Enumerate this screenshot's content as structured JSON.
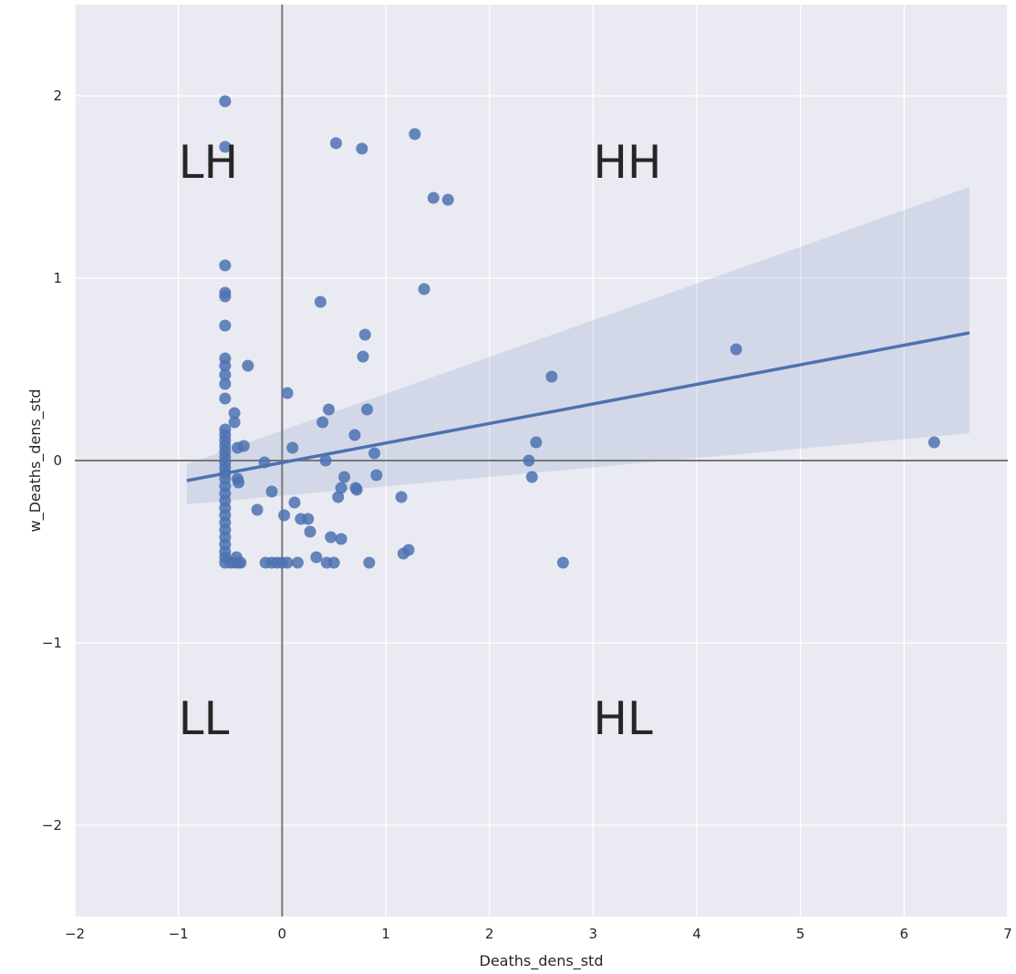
{
  "chart_data": {
    "type": "scatter",
    "title": "",
    "xlabel": "Deaths_dens_std",
    "ylabel": "w_Deaths_dens_std",
    "xlim": [
      -2,
      7
    ],
    "ylim": [
      -2.5,
      2.5
    ],
    "x_ticks": [
      -2,
      -1,
      0,
      1,
      2,
      3,
      4,
      5,
      6,
      7
    ],
    "y_ticks": [
      -2,
      -1,
      0,
      1,
      2
    ],
    "grid": true,
    "background": "#eaeaf2",
    "point_color": "#4c72b0",
    "reference_lines": {
      "x": 0,
      "y": 0,
      "color": "#777777"
    },
    "quadrant_labels": [
      {
        "text": "LH",
        "x": -1,
        "y": 1.55
      },
      {
        "text": "HH",
        "x": 3,
        "y": 1.55
      },
      {
        "text": "LL",
        "x": -1,
        "y": -1.5
      },
      {
        "text": "HL",
        "x": 3,
        "y": -1.5
      }
    ],
    "regression": {
      "x_start": -0.92,
      "y_start": -0.11,
      "x_end": 6.63,
      "y_end": 0.7,
      "ci_upper": [
        [
          -0.92,
          -0.02
        ],
        [
          6.63,
          1.5
        ]
      ],
      "ci_lower": [
        [
          -0.92,
          -0.24
        ],
        [
          6.63,
          0.15
        ]
      ]
    },
    "points": [
      [
        -0.55,
        1.97
      ],
      [
        -0.55,
        1.72
      ],
      [
        -0.55,
        1.07
      ],
      [
        -0.55,
        0.92
      ],
      [
        -0.55,
        0.9
      ],
      [
        -0.55,
        0.74
      ],
      [
        -0.55,
        0.56
      ],
      [
        -0.55,
        0.52
      ],
      [
        -0.55,
        0.47
      ],
      [
        -0.55,
        0.42
      ],
      [
        -0.55,
        0.34
      ],
      [
        -0.55,
        0.17
      ],
      [
        -0.55,
        0.14
      ],
      [
        -0.55,
        0.11
      ],
      [
        -0.55,
        0.08
      ],
      [
        -0.55,
        0.05
      ],
      [
        -0.55,
        0.02
      ],
      [
        -0.55,
        -0.01
      ],
      [
        -0.55,
        -0.04
      ],
      [
        -0.55,
        -0.07
      ],
      [
        -0.55,
        -0.1
      ],
      [
        -0.55,
        -0.14
      ],
      [
        -0.55,
        -0.18
      ],
      [
        -0.55,
        -0.22
      ],
      [
        -0.55,
        -0.26
      ],
      [
        -0.55,
        -0.3
      ],
      [
        -0.55,
        -0.34
      ],
      [
        -0.55,
        -0.38
      ],
      [
        -0.55,
        -0.42
      ],
      [
        -0.55,
        -0.46
      ],
      [
        -0.55,
        -0.5
      ],
      [
        -0.55,
        -0.53
      ],
      [
        -0.55,
        -0.56
      ],
      [
        -0.5,
        -0.56
      ],
      [
        -0.46,
        -0.56
      ],
      [
        -0.44,
        -0.53
      ],
      [
        -0.42,
        -0.56
      ],
      [
        -0.4,
        -0.56
      ],
      [
        -0.46,
        0.26
      ],
      [
        -0.46,
        0.21
      ],
      [
        -0.43,
        0.07
      ],
      [
        -0.37,
        0.08
      ],
      [
        -0.43,
        -0.1
      ],
      [
        -0.42,
        -0.12
      ],
      [
        -0.33,
        0.52
      ],
      [
        -0.24,
        -0.27
      ],
      [
        -0.17,
        -0.01
      ],
      [
        -0.16,
        -0.56
      ],
      [
        -0.1,
        -0.56
      ],
      [
        -0.1,
        -0.17
      ],
      [
        -0.05,
        -0.56
      ],
      [
        0.0,
        -0.56
      ],
      [
        0.02,
        -0.3
      ],
      [
        0.05,
        -0.56
      ],
      [
        0.05,
        0.37
      ],
      [
        0.1,
        0.07
      ],
      [
        0.12,
        -0.23
      ],
      [
        0.15,
        -0.56
      ],
      [
        0.18,
        -0.32
      ],
      [
        0.25,
        -0.32
      ],
      [
        0.27,
        -0.39
      ],
      [
        0.33,
        -0.53
      ],
      [
        0.37,
        0.87
      ],
      [
        0.39,
        0.21
      ],
      [
        0.42,
        0.0
      ],
      [
        0.43,
        -0.56
      ],
      [
        0.45,
        0.28
      ],
      [
        0.47,
        -0.42
      ],
      [
        0.5,
        -0.56
      ],
      [
        0.52,
        1.74
      ],
      [
        0.54,
        -0.2
      ],
      [
        0.57,
        -0.43
      ],
      [
        0.57,
        -0.15
      ],
      [
        0.6,
        -0.09
      ],
      [
        0.7,
        0.14
      ],
      [
        0.71,
        -0.15
      ],
      [
        0.72,
        -0.16
      ],
      [
        0.77,
        1.71
      ],
      [
        0.78,
        0.57
      ],
      [
        0.8,
        0.69
      ],
      [
        0.82,
        0.28
      ],
      [
        0.84,
        -0.56
      ],
      [
        0.89,
        0.04
      ],
      [
        0.91,
        -0.08
      ],
      [
        1.15,
        -0.2
      ],
      [
        1.17,
        -0.51
      ],
      [
        1.22,
        -0.49
      ],
      [
        1.28,
        1.79
      ],
      [
        1.37,
        0.94
      ],
      [
        1.46,
        1.44
      ],
      [
        1.6,
        1.43
      ],
      [
        2.38,
        0.0
      ],
      [
        2.41,
        -0.09
      ],
      [
        2.45,
        0.1
      ],
      [
        2.6,
        0.46
      ],
      [
        2.71,
        -0.56
      ],
      [
        4.38,
        0.61
      ],
      [
        6.29,
        0.1
      ]
    ]
  }
}
